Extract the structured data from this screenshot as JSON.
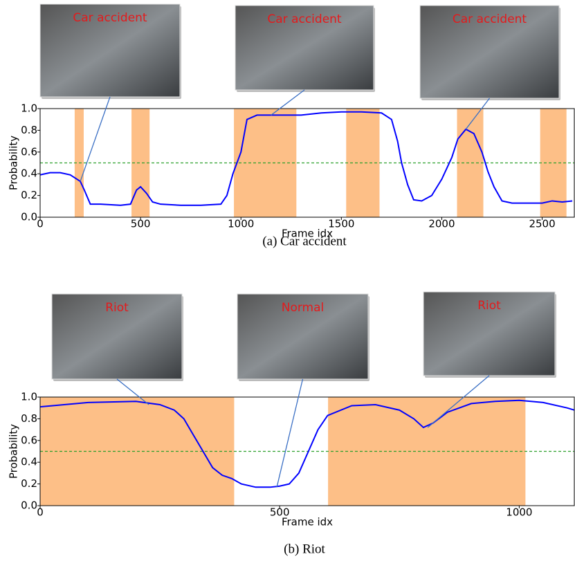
{
  "chart_data": [
    {
      "type": "line",
      "caption": "(a) Car accident",
      "xlabel": "Frame idx",
      "ylabel": "Probability",
      "xlim": [
        0,
        2660
      ],
      "ylim": [
        0,
        1
      ],
      "xticks": [
        0,
        500,
        1000,
        1500,
        2000,
        2500
      ],
      "yticks": [
        {
          "value": 0,
          "label": "0.0"
        },
        0.2,
        0.4,
        0.6,
        0.8,
        {
          "value": 1,
          "label": "1.0"
        }
      ],
      "threshold": 0.5,
      "threshold_color": "#2ca02c",
      "span_color": "#fdbf87",
      "spans": [
        [
          172,
          217
        ],
        [
          455,
          545
        ],
        [
          965,
          1276
        ],
        [
          1524,
          1690
        ],
        [
          2076,
          2207
        ],
        [
          2490,
          2621
        ]
      ],
      "series": [
        {
          "color": "#0000ff",
          "x": [
            0,
            50,
            100,
            150,
            200,
            220,
            250,
            300,
            400,
            450,
            480,
            500,
            530,
            560,
            600,
            700,
            800,
            900,
            930,
            960,
            1000,
            1030,
            1080,
            1200,
            1300,
            1400,
            1500,
            1600,
            1700,
            1750,
            1780,
            1800,
            1830,
            1860,
            1900,
            1950,
            2000,
            2050,
            2080,
            2120,
            2160,
            2200,
            2230,
            2260,
            2300,
            2350,
            2450,
            2500,
            2550,
            2600,
            2650
          ],
          "values": [
            0.39,
            0.41,
            0.41,
            0.39,
            0.33,
            0.25,
            0.12,
            0.12,
            0.11,
            0.12,
            0.25,
            0.28,
            0.22,
            0.14,
            0.12,
            0.11,
            0.11,
            0.12,
            0.2,
            0.4,
            0.6,
            0.9,
            0.94,
            0.94,
            0.94,
            0.96,
            0.97,
            0.97,
            0.96,
            0.9,
            0.7,
            0.5,
            0.3,
            0.16,
            0.15,
            0.2,
            0.35,
            0.55,
            0.72,
            0.81,
            0.77,
            0.6,
            0.42,
            0.28,
            0.15,
            0.13,
            0.13,
            0.13,
            0.15,
            0.14,
            0.15
          ]
        }
      ],
      "annotations": [
        {
          "label": "Car accident",
          "x": 200,
          "y": 0.33
        },
        {
          "label": "Car accident",
          "x": 1150,
          "y": 0.94
        },
        {
          "label": "Car accident",
          "x": 2120,
          "y": 0.81
        }
      ]
    },
    {
      "type": "line",
      "caption": "(b) Riot",
      "xlabel": "Frame idx",
      "ylabel": "Probability",
      "xlim": [
        0,
        1115
      ],
      "ylim": [
        0,
        1
      ],
      "xticks": [
        0,
        500,
        1000
      ],
      "yticks": [
        {
          "value": 0,
          "label": "0.0"
        },
        0.2,
        0.4,
        0.6,
        0.8,
        {
          "value": 1,
          "label": "1.0"
        }
      ],
      "threshold": 0.5,
      "threshold_color": "#2ca02c",
      "span_color": "#fdbf87",
      "spans": [
        [
          0,
          405
        ],
        [
          601,
          1013
        ]
      ],
      "series": [
        {
          "color": "#0000ff",
          "x": [
            0,
            50,
            100,
            200,
            250,
            280,
            300,
            320,
            340,
            360,
            380,
            400,
            420,
            450,
            480,
            500,
            520,
            540,
            560,
            580,
            600,
            650,
            700,
            750,
            780,
            800,
            820,
            850,
            900,
            950,
            1000,
            1050,
            1100,
            1115
          ],
          "values": [
            0.91,
            0.93,
            0.95,
            0.96,
            0.93,
            0.88,
            0.8,
            0.65,
            0.5,
            0.35,
            0.28,
            0.25,
            0.2,
            0.17,
            0.17,
            0.18,
            0.2,
            0.3,
            0.5,
            0.7,
            0.83,
            0.92,
            0.93,
            0.88,
            0.8,
            0.72,
            0.76,
            0.86,
            0.94,
            0.96,
            0.97,
            0.95,
            0.9,
            0.88
          ]
        }
      ],
      "annotations": [
        {
          "label": "Riot",
          "x": 227,
          "y": 0.93
        },
        {
          "label": "Normal",
          "x": 494,
          "y": 0.17
        },
        {
          "label": "Riot",
          "x": 809,
          "y": 0.72
        }
      ]
    }
  ]
}
